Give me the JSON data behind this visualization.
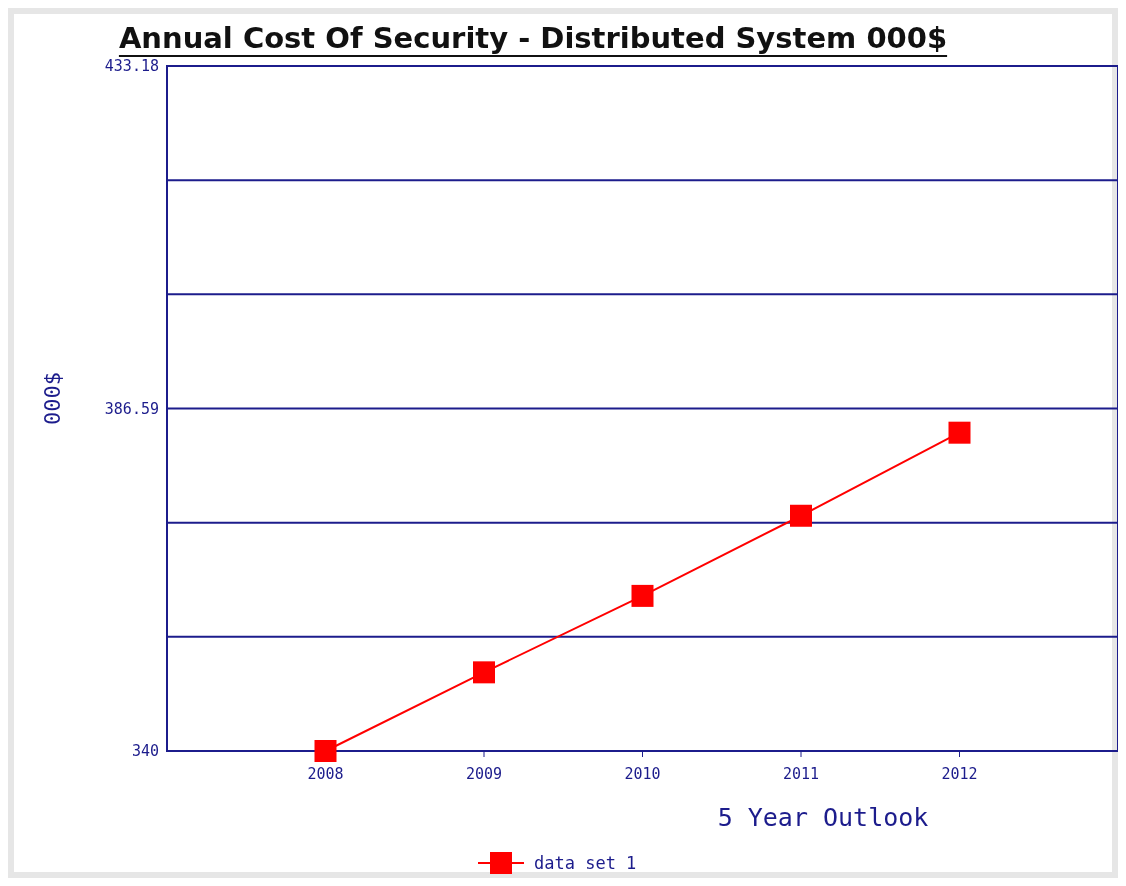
{
  "chart_data": {
    "type": "line",
    "title": "Annual Cost Of Security - Distributed System 000$",
    "xlabel": "5 Year Outlook",
    "ylabel": "000$",
    "categories": [
      "2008",
      "2009",
      "2010",
      "2011",
      "2012"
    ],
    "series": [
      {
        "name": "data set 1",
        "color": "#ff0000",
        "values": [
          340,
          350.7,
          361.1,
          372,
          383.3
        ]
      }
    ],
    "ylim": [
      340,
      433.18
    ],
    "yticks": [
      340,
      {
        "value": 355.53,
        "label": null
      },
      {
        "value": 371.06,
        "label": null
      },
      386.59,
      {
        "value": 402.12,
        "label": null
      },
      {
        "value": 417.65,
        "label": null
      },
      433.18
    ],
    "grid": "y",
    "legend": "bottom",
    "marker": "square",
    "line_style": "solid"
  }
}
